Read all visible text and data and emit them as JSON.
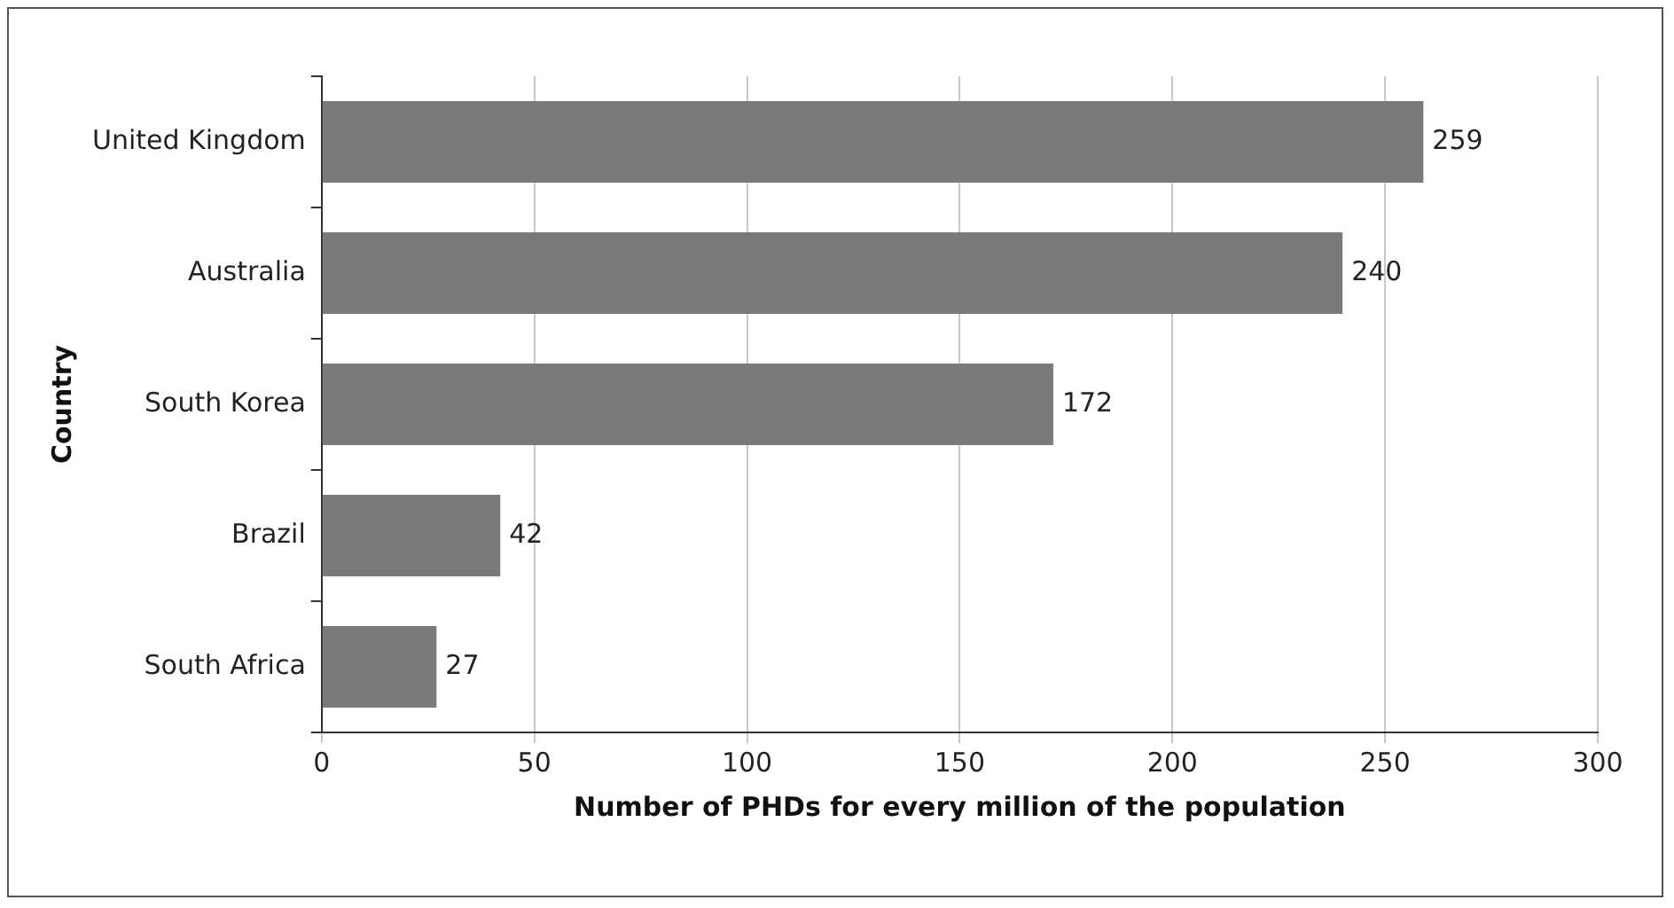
{
  "chart_data": {
    "type": "bar",
    "orientation": "horizontal",
    "xlabel": "Number of PHDs for every million of the population",
    "ylabel": "Country",
    "categories": [
      "United Kingdom",
      "Australia",
      "South Korea",
      "Brazil",
      "South Africa"
    ],
    "values": [
      259,
      240,
      172,
      42,
      27
    ],
    "color": "#7a7a7a",
    "xlim": [
      0,
      300
    ],
    "xticks": [
      0,
      50,
      100,
      150,
      200,
      250,
      300
    ],
    "grid": "x",
    "data_labels": true
  }
}
